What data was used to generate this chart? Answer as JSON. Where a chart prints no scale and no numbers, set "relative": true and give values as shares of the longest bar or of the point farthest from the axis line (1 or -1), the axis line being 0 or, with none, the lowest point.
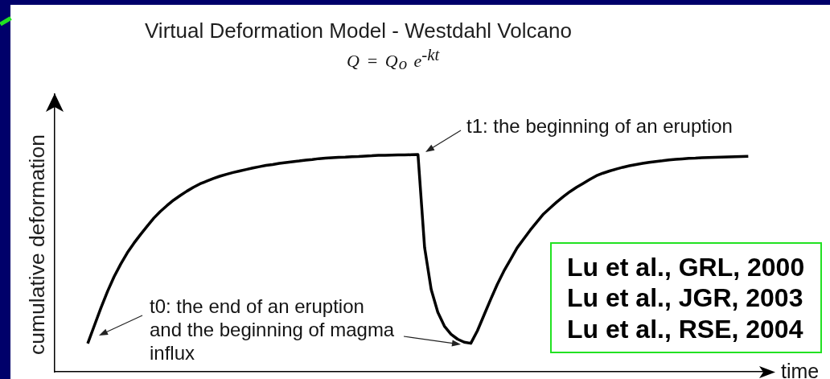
{
  "chart_data": {
    "type": "line",
    "title": "Virtual Deformation Model - Westdahl Volcano",
    "subtitle": "Q = Q$_{o}$ e$^{-kt}$",
    "xlabel": "time",
    "ylabel": "cumulative deformation",
    "annotations": [
      "t1: the beginning of an eruption",
      "t0: the end of an eruption\nand the beginning of magma\ninflux",
      "Lu et al., GRL, 2000",
      "Lu et al., JGR, 2003",
      "Lu et al., RSE, 2004"
    ],
    "categories": [
      null,
      null,
      null,
      null,
      null,
      null,
      null,
      null,
      null,
      null,
      null,
      null,
      null,
      null,
      null,
      null,
      null,
      null,
      null,
      null,
      null,
      null,
      null,
      null,
      null,
      null,
      null,
      null,
      null,
      null,
      null,
      null,
      null,
      null,
      null,
      null,
      null,
      null,
      null,
      null,
      null,
      null,
      null,
      null,
      null,
      null,
      null,
      null,
      null,
      null,
      null,
      null,
      null,
      null,
      null,
      null,
      null,
      null,
      null,
      null,
      null,
      null,
      null,
      null,
      null,
      null,
      null,
      null,
      null,
      null,
      null,
      null,
      null,
      null,
      null,
      null,
      null,
      null,
      null,
      null,
      null,
      null,
      null,
      null,
      null,
      null,
      null,
      null,
      null,
      null,
      null,
      null,
      null,
      null,
      null,
      null,
      null,
      null,
      null,
      null,
      null,
      null,
      null,
      null,
      null,
      null,
      null,
      null,
      null
    ],
    "values": [
      null,
      null,
      null,
      null,
      null,
      0.13,
      0.212,
      0.294,
      0.37,
      0.438,
      0.496,
      0.548,
      0.592,
      0.632,
      0.67,
      0.707,
      0.738,
      0.765,
      0.79,
      0.811,
      0.831,
      0.849,
      0.865,
      0.877,
      0.889,
      0.9,
      0.909,
      0.917,
      0.924,
      0.931,
      0.938,
      0.944,
      0.95,
      0.954,
      0.959,
      0.963,
      0.967,
      0.97,
      0.974,
      0.977,
      0.981,
      0.983,
      0.985,
      0.987,
      0.988,
      0.99,
      0.991,
      0.993,
      0.994,
      0.996,
      0.996,
      0.997,
      0.998,
      0.998,
      0.999,
      1,
      0.572,
      0.379,
      0.274,
      0.21,
      0.173,
      0.15,
      0.136,
      0.131,
      0.189,
      0.261,
      0.333,
      0.402,
      0.463,
      0.516,
      0.57,
      0.611,
      0.652,
      0.689,
      0.726,
      0.754,
      0.781,
      0.806,
      0.829,
      0.849,
      0.867,
      0.885,
      0.902,
      0.914,
      0.924,
      0.933,
      0.941,
      0.948,
      0.954,
      0.959,
      0.964,
      0.968,
      0.971,
      0.975,
      0.978,
      0.98,
      0.982,
      0.983,
      0.985,
      0.986,
      0.987,
      0.988,
      0.989,
      0.99,
      0.991,
      0.992,
      null,
      null,
      null
    ],
    "color": "#000000",
    "relative": true,
    "marker": "none",
    "line_style": "solid"
  }
}
